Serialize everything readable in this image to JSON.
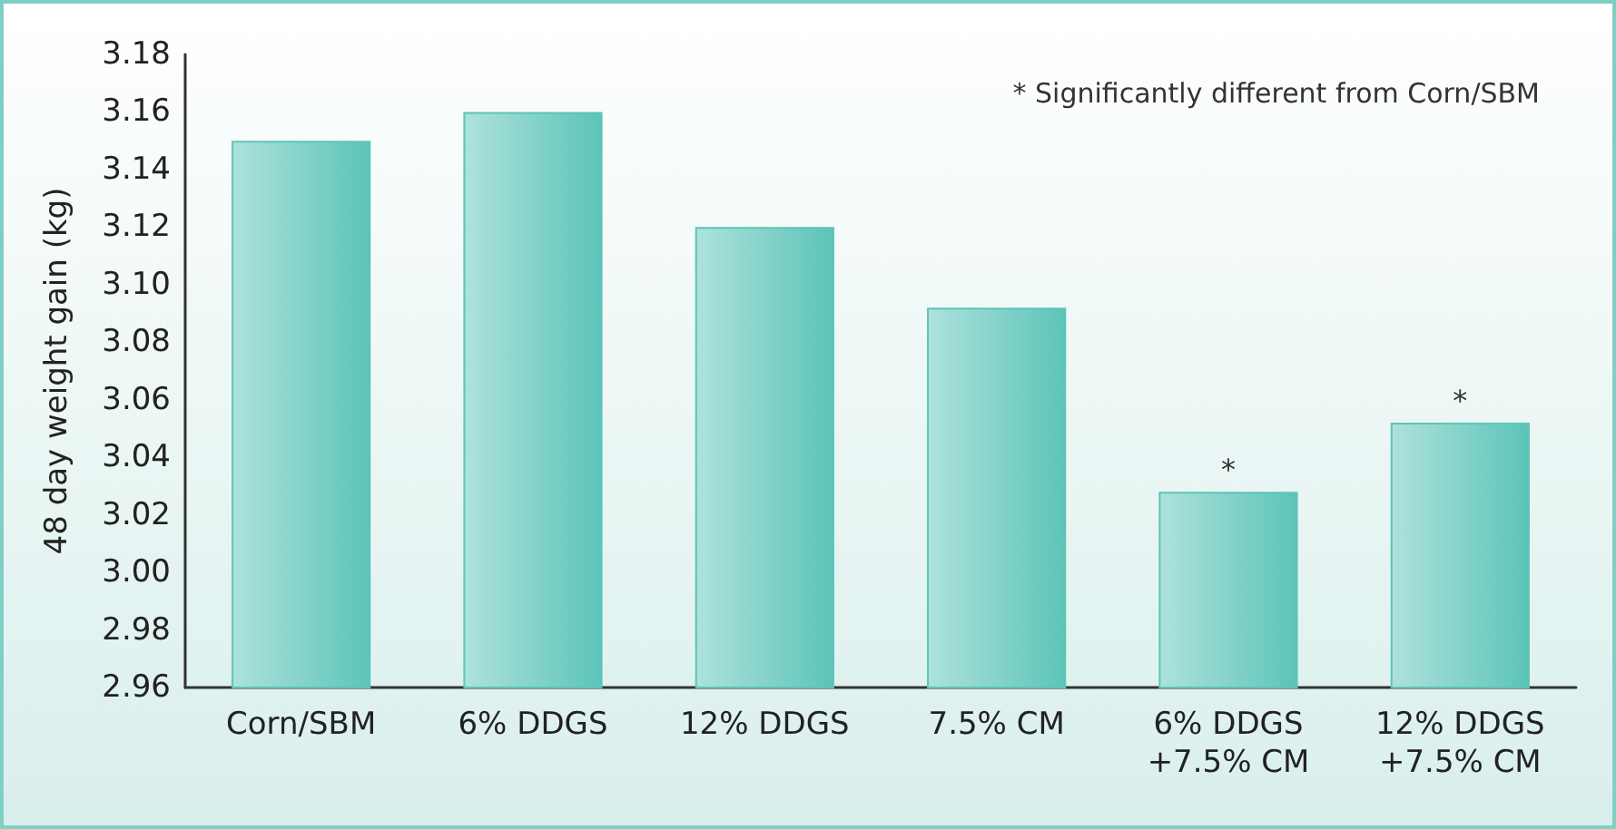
{
  "chart_data": {
    "type": "bar",
    "ylabel": "48 day weight gain (kg)",
    "categories": [
      "Corn/SBM",
      "6% DDGS",
      "12% DDGS",
      "7.5% CM",
      "6% DDGS\n+7.5% CM",
      "12% DDGS\n+7.5% CM"
    ],
    "values": [
      3.15,
      3.16,
      3.12,
      3.092,
      3.028,
      3.052
    ],
    "color": "#5cc4b8",
    "ylim": [
      2.96,
      3.18
    ],
    "yticks": [
      {
        "value": 2.96,
        "label": "2.96"
      },
      {
        "value": 2.98,
        "label": "2.98"
      },
      {
        "value": 3.0,
        "label": "3.00"
      },
      {
        "value": 3.02,
        "label": "3.02"
      },
      {
        "value": 3.04,
        "label": "3.04"
      },
      {
        "value": 3.06,
        "label": "3.06"
      },
      {
        "value": 3.08,
        "label": "3.08"
      },
      {
        "value": 3.1,
        "label": "3.10"
      },
      {
        "value": 3.12,
        "label": "3.12"
      },
      {
        "value": 3.14,
        "label": "3.14"
      },
      {
        "value": 3.16,
        "label": "3.16"
      },
      {
        "value": 3.18,
        "label": "3.18"
      }
    ],
    "annotations": [
      "* Significantly different from Corn/SBM",
      {
        "text": "*",
        "x": "6% DDGS\n+7.5% CM",
        "y": 3.028
      },
      {
        "text": "*",
        "x": "12% DDGS\n+7.5% CM",
        "y": 3.052
      }
    ],
    "grid": false
  }
}
